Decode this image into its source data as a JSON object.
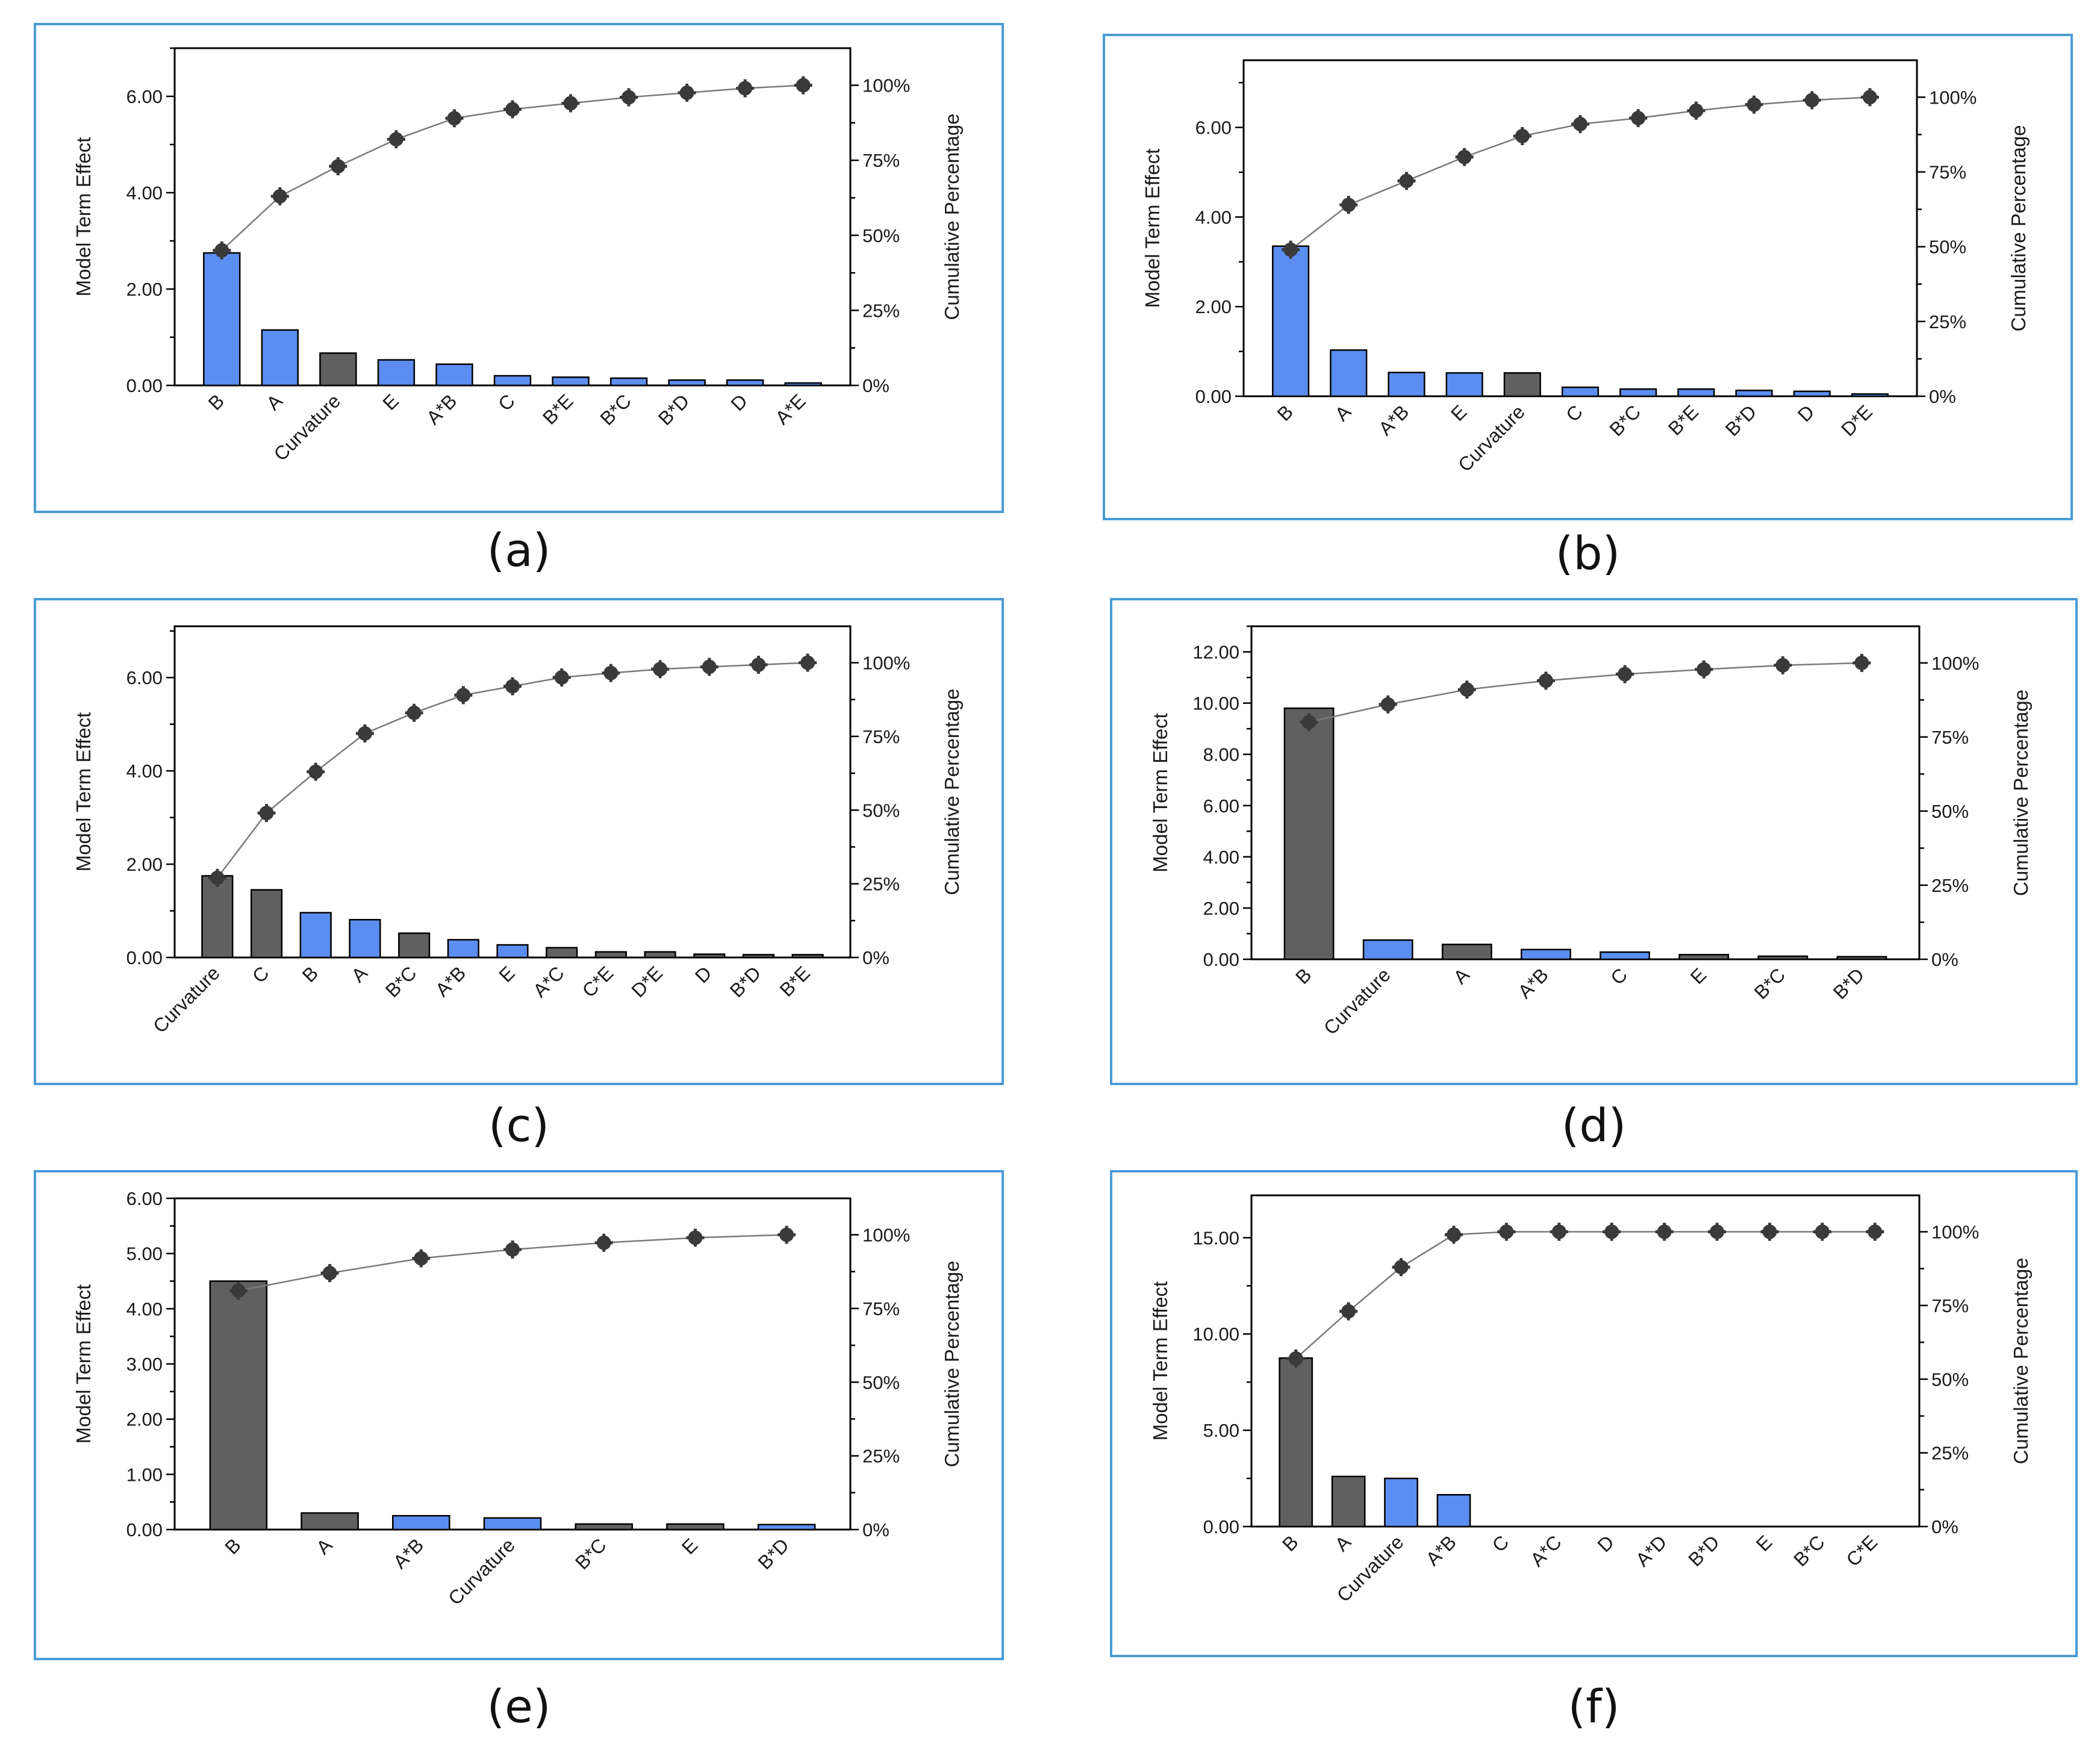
{
  "colors": {
    "positive": "#5b8ef0",
    "negative": "#606060",
    "frame": "#4a9bd6",
    "line": "#7a7a7a",
    "marker": "#3a3a3a"
  },
  "chart_data": [
    {
      "type": "bar",
      "panel": "a",
      "caption": "(a)",
      "ylabel": "Model Term Effect",
      "y2label": "Cumulative Percentage",
      "ylim": [
        0,
        7
      ],
      "yticks": [
        0,
        2,
        4,
        6
      ],
      "ytick_labels": [
        "0.00",
        "2.00",
        "4.00",
        "6.00"
      ],
      "y2ticks": [
        "0%",
        "25%",
        "50%",
        "75%",
        "100%"
      ],
      "categories": [
        "B",
        "A",
        "Curvature",
        "E",
        "A*B",
        "C",
        "B*E",
        "B*C",
        "B*D",
        "D",
        "A*E"
      ],
      "values": [
        2.75,
        1.15,
        0.67,
        0.53,
        0.44,
        0.2,
        0.17,
        0.15,
        0.11,
        0.11,
        0.05
      ],
      "sign": [
        "pos",
        "pos",
        "neg",
        "pos",
        "pos",
        "pos",
        "pos",
        "pos",
        "pos",
        "pos",
        "pos"
      ],
      "cumulative": [
        45,
        63,
        73,
        82,
        89,
        92,
        94,
        96,
        97.5,
        99,
        100
      ]
    },
    {
      "type": "bar",
      "panel": "b",
      "caption": "(b)",
      "ylabel": "Model Term Effect",
      "y2label": "Cumulative Percentage",
      "ylim": [
        0,
        7.5
      ],
      "yticks": [
        0,
        2,
        4,
        6
      ],
      "ytick_labels": [
        "0.00",
        "2.00",
        "4.00",
        "6.00"
      ],
      "y2ticks": [
        "0%",
        "25%",
        "50%",
        "75%",
        "100%"
      ],
      "categories": [
        "B",
        "A",
        "A*B",
        "E",
        "Curvature",
        "C",
        "B*C",
        "B*E",
        "B*D",
        "D",
        "D*E"
      ],
      "values": [
        3.35,
        1.03,
        0.53,
        0.52,
        0.52,
        0.2,
        0.16,
        0.16,
        0.13,
        0.11,
        0.05
      ],
      "sign": [
        "pos",
        "pos",
        "pos",
        "pos",
        "neg",
        "pos",
        "pos",
        "pos",
        "pos",
        "pos",
        "pos"
      ],
      "cumulative": [
        49,
        64,
        72,
        80,
        87,
        91,
        93,
        95.5,
        97.5,
        99,
        100
      ]
    },
    {
      "type": "bar",
      "panel": "c",
      "caption": "(c)",
      "ylabel": "Model Term Effect",
      "y2label": "Cumulative Percentage",
      "ylim": [
        0,
        7.1
      ],
      "yticks": [
        0,
        2,
        4,
        6
      ],
      "ytick_labels": [
        "0.00",
        "2.00",
        "4.00",
        "6.00"
      ],
      "y2ticks": [
        "0%",
        "25%",
        "50%",
        "75%",
        "100%"
      ],
      "categories": [
        "Curvature",
        "C",
        "B",
        "A",
        "B*C",
        "A*B",
        "E",
        "A*C",
        "C*E",
        "D*E",
        "D",
        "B*D",
        "B*E"
      ],
      "values": [
        1.75,
        1.45,
        0.96,
        0.81,
        0.52,
        0.38,
        0.27,
        0.21,
        0.12,
        0.12,
        0.07,
        0.06,
        0.06
      ],
      "sign": [
        "neg",
        "neg",
        "pos",
        "pos",
        "neg",
        "pos",
        "pos",
        "neg",
        "neg",
        "neg",
        "neg",
        "neg",
        "neg"
      ],
      "cumulative": [
        27,
        49,
        63,
        76,
        83,
        89,
        92,
        95,
        96.5,
        97.8,
        98.6,
        99.3,
        100
      ]
    },
    {
      "type": "bar",
      "panel": "d",
      "caption": "(d)",
      "ylabel": "Model Term Effect",
      "y2label": "Cumulative Percentage",
      "ylim": [
        0,
        13
      ],
      "yticks": [
        0,
        2,
        4,
        6,
        8,
        10,
        12
      ],
      "ytick_labels": [
        "0.00",
        "2.00",
        "4.00",
        "6.00",
        "8.00",
        "10.00",
        "12.00"
      ],
      "y2ticks": [
        "0%",
        "25%",
        "50%",
        "75%",
        "100%"
      ],
      "categories": [
        "B",
        "Curvature",
        "A",
        "A*B",
        "C",
        "E",
        "B*C",
        "B*D"
      ],
      "values": [
        9.8,
        0.75,
        0.58,
        0.38,
        0.28,
        0.18,
        0.12,
        0.1
      ],
      "sign": [
        "neg",
        "pos",
        "neg",
        "pos",
        "pos",
        "neg",
        "neg",
        "neg"
      ],
      "cumulative": [
        80,
        86,
        91,
        94,
        96.2,
        97.8,
        99.2,
        100
      ]
    },
    {
      "type": "bar",
      "panel": "e",
      "caption": "(e)",
      "ylabel": "Model Term Effect",
      "y2label": "Cumulative Percentage",
      "ylim": [
        0,
        6
      ],
      "yticks": [
        0,
        1,
        2,
        3,
        4,
        5,
        6
      ],
      "ytick_labels": [
        "0.00",
        "1.00",
        "2.00",
        "3.00",
        "4.00",
        "5.00",
        "6.00"
      ],
      "y2ticks": [
        "0%",
        "25%",
        "50%",
        "75%",
        "100%"
      ],
      "categories": [
        "B",
        "A",
        "A*B",
        "Curvature",
        "B*C",
        "E",
        "B*D"
      ],
      "values": [
        4.5,
        0.3,
        0.25,
        0.21,
        0.1,
        0.1,
        0.09
      ],
      "sign": [
        "neg",
        "neg",
        "pos",
        "pos",
        "neg",
        "neg",
        "pos"
      ],
      "cumulative": [
        81,
        87,
        92,
        95,
        97.3,
        99,
        100
      ]
    },
    {
      "type": "bar",
      "panel": "f",
      "caption": "(f)",
      "ylabel": "Model Term Effect",
      "y2label": "Cumulative Percentage",
      "ylim": [
        0,
        17.2
      ],
      "yticks": [
        0,
        5,
        10,
        15
      ],
      "ytick_labels": [
        "0.00",
        "5.00",
        "10.00",
        "15.00"
      ],
      "y2ticks": [
        "0%",
        "25%",
        "50%",
        "75%",
        "100%"
      ],
      "categories": [
        "B",
        "A",
        "Curvature",
        "A*B",
        "C",
        "A*C",
        "D",
        "A*D",
        "B*D",
        "E",
        "B*C",
        "C*E"
      ],
      "values": [
        8.75,
        2.6,
        2.5,
        1.65,
        0,
        0,
        0,
        0,
        0,
        0,
        0,
        0
      ],
      "sign": [
        "neg",
        "neg",
        "pos",
        "pos",
        "neg",
        "neg",
        "neg",
        "neg",
        "neg",
        "neg",
        "neg",
        "neg"
      ],
      "cumulative": [
        57,
        73,
        88,
        99,
        100,
        100,
        100,
        100,
        100,
        100,
        100,
        100
      ]
    }
  ]
}
